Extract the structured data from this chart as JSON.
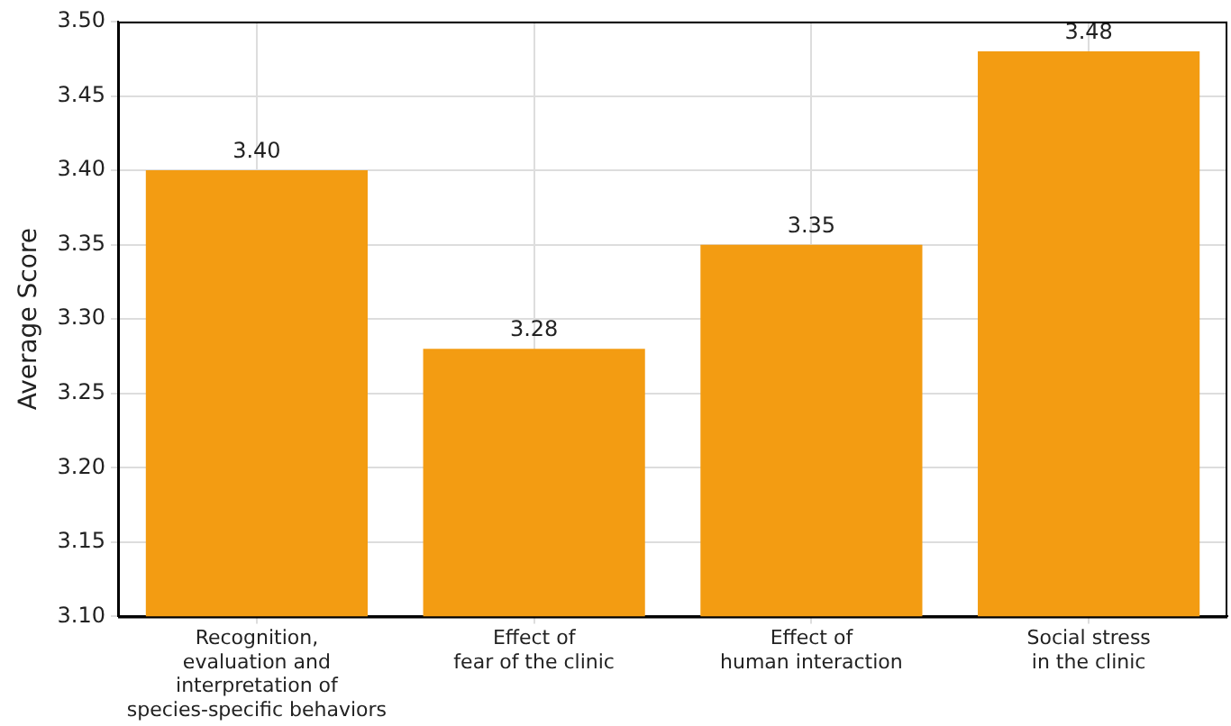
{
  "chart_data": {
    "type": "bar",
    "ylabel": "Average Score",
    "categories": [
      "Recognition,\nevaluation and\ninterpretation of\nspecies-specific behaviors",
      "Effect of\nfear of the clinic",
      "Effect of\nhuman interaction",
      "Social stress\nin the clinic"
    ],
    "values": [
      3.4,
      3.28,
      3.35,
      3.48
    ],
    "value_labels": [
      "3.40",
      "3.28",
      "3.35",
      "3.48"
    ],
    "color": "#f39c12",
    "ylim": [
      3.1,
      3.5
    ],
    "yticks": [
      {
        "value": 3.1,
        "label": "3.10"
      },
      {
        "value": 3.15,
        "label": "3.15"
      },
      {
        "value": 3.2,
        "label": "3.20"
      },
      {
        "value": 3.25,
        "label": "3.25"
      },
      {
        "value": 3.3,
        "label": "3.30"
      },
      {
        "value": 3.35,
        "label": "3.35"
      },
      {
        "value": 3.4,
        "label": "3.40"
      },
      {
        "value": 3.45,
        "label": "3.45"
      },
      {
        "value": 3.5,
        "label": "3.50"
      }
    ],
    "grid": true
  }
}
